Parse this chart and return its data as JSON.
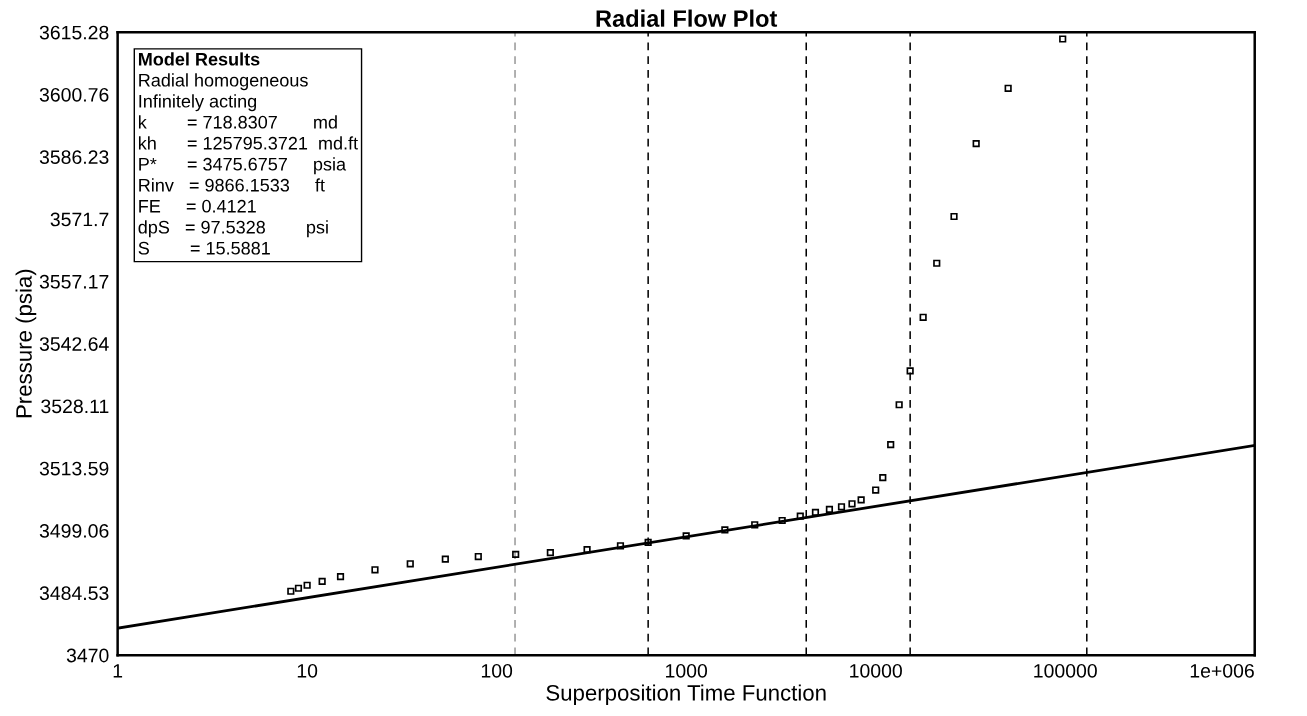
{
  "chart_data": {
    "type": "scatter",
    "title": "Radial Flow Plot",
    "xlabel": "Superposition Time Function",
    "ylabel": "Pressure (psia)",
    "log": "x",
    "grid": false,
    "xlim": [
      1,
      1000000
    ],
    "xticks": [
      1,
      10,
      100,
      1000,
      10000,
      100000,
      {
        "value": 1000000,
        "label": "1e+006"
      }
    ],
    "ylim": [
      3470,
      3615.28
    ],
    "yticks": [
      3470,
      3484.53,
      3499.06,
      3513.59,
      3528.11,
      3542.64,
      3557.17,
      3571.7,
      3586.23,
      3600.76,
      3615.28
    ],
    "series": [
      {
        "marker": "square",
        "color": "#000000",
        "x": [
          8.2,
          9,
          10,
          12,
          15,
          22.8,
          35,
          53.6,
          80,
          126,
          192,
          300,
          450,
          630,
          1000,
          1600,
          2300,
          3210,
          4000,
          4810,
          5700,
          6600,
          7500,
          8380,
          10000,
          10900,
          12000,
          13300,
          15200,
          17800,
          21000,
          25900,
          33900,
          50000,
          97000
        ],
        "values": [
          3484.9,
          3485.6,
          3486.3,
          3487.2,
          3488.3,
          3489.9,
          3491.3,
          3492.4,
          3493.0,
          3493.5,
          3493.9,
          3494.6,
          3495.5,
          3496.3,
          3497.8,
          3499.2,
          3500.4,
          3501.4,
          3502.4,
          3503.3,
          3504.0,
          3504.6,
          3505.3,
          3506.2,
          3508.5,
          3511.4,
          3519.1,
          3528.4,
          3536.3,
          3548.8,
          3561.4,
          3572.3,
          3589.3,
          3602.2,
          3613.7
        ]
      },
      {
        "type": "line",
        "color": "#000000",
        "x": [
          1,
          1000000
        ],
        "values": [
          3476.3,
          3518.9
        ]
      }
    ],
    "ref_lines": [
      {
        "axis": "x",
        "value": 125,
        "color": "#999999",
        "line_style": "dashed"
      },
      {
        "axis": "x",
        "value": 630,
        "color": "#000000",
        "line_style": "dashed"
      },
      {
        "axis": "x",
        "value": 4300,
        "color": "#000000",
        "line_style": "dashed"
      },
      {
        "axis": "x",
        "value": 15200,
        "color": "#000000",
        "line_style": "dashed"
      },
      {
        "axis": "x",
        "value": 130000,
        "color": "#000000",
        "line_style": "dashed"
      }
    ],
    "annotations": [
      "Model Results",
      "Radial homogeneous",
      "Infinitely acting",
      "k        = 718.8307       md",
      "kh      = 125795.3721  md.ft",
      "P*      = 3475.6757     psia",
      "Rinv   = 9866.1533     ft",
      "FE     = 0.4121",
      "dpS   = 97.5328        psi",
      "S        = 15.5881"
    ]
  }
}
